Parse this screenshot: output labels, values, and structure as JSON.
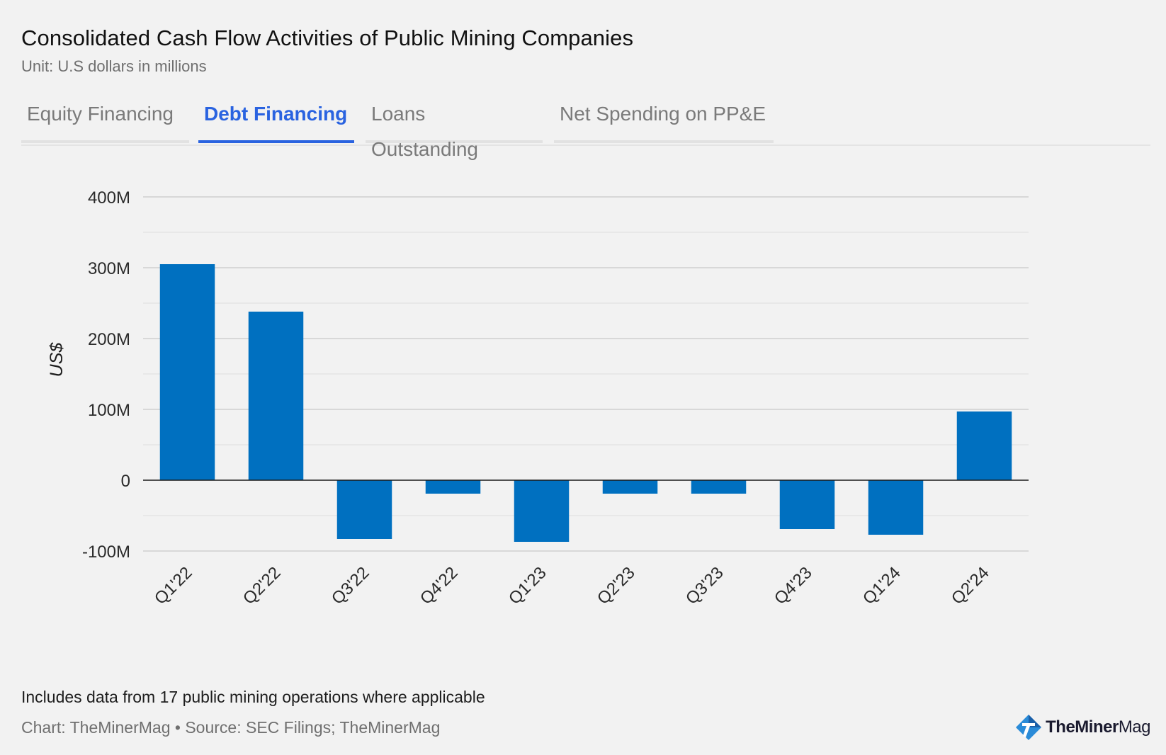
{
  "header": {
    "title": "Consolidated Cash Flow Activities of Public Mining Companies",
    "subtitle": "Unit: U.S dollars in millions"
  },
  "tabs": [
    {
      "label": "Equity Financing",
      "active": false
    },
    {
      "label": "Debt Financing",
      "active": true
    },
    {
      "label": "Loans Outstanding",
      "active": false
    },
    {
      "label": "Net Spending on PP&E",
      "active": false
    }
  ],
  "colors": {
    "bar": "#0070c0",
    "accent": "#2a63e0"
  },
  "chart_data": {
    "type": "bar",
    "categories": [
      "Q1'22",
      "Q2'22",
      "Q3'22",
      "Q4'22",
      "Q1'23",
      "Q2'23",
      "Q3'23",
      "Q4'23",
      "Q1'24",
      "Q2'24"
    ],
    "values": [
      305,
      238,
      -83,
      -19,
      -87,
      -19,
      -19,
      -69,
      -77,
      97
    ],
    "ylabel": "US$",
    "xlabel": "",
    "ylim": [
      -100,
      400
    ],
    "yticks": [
      400,
      300,
      200,
      100,
      0,
      -100
    ],
    "ytick_labels": [
      "400M",
      "300M",
      "200M",
      "100M",
      "0",
      "-100M"
    ],
    "grid": true
  },
  "footer": {
    "note": "Includes data from 17 public mining operations where applicable",
    "source": "Chart: TheMinerMag • Source: SEC Filings; TheMinerMag",
    "logo_bold": "TheMiner",
    "logo_light": "Mag",
    "logo_icon": "pickaxe-icon"
  }
}
